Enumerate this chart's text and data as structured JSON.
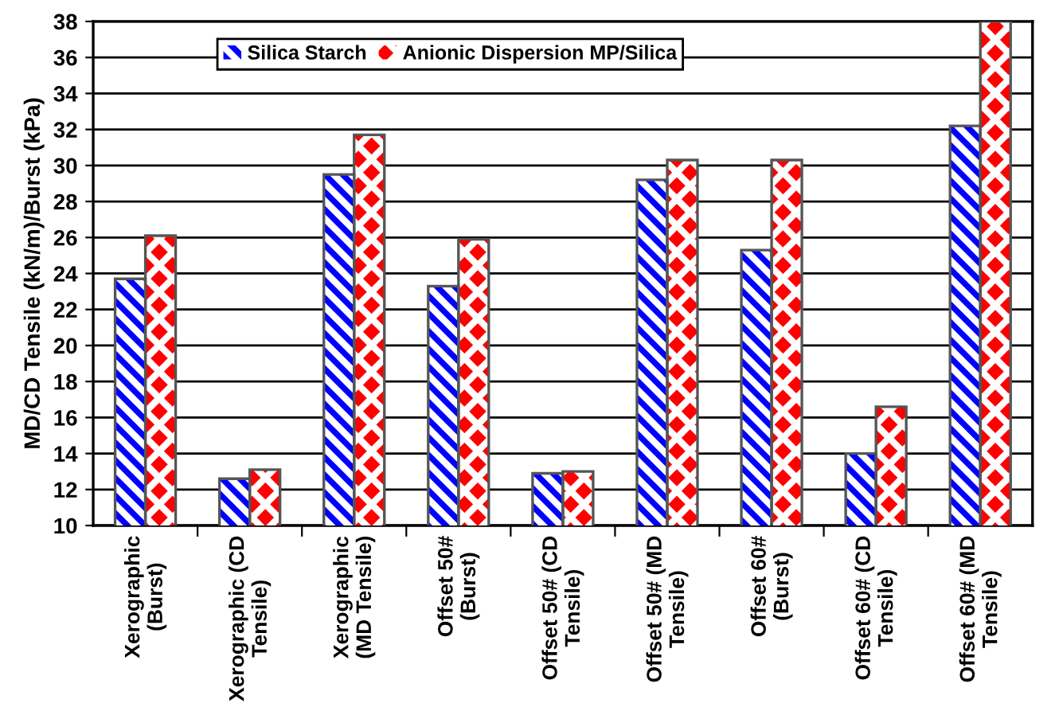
{
  "chart_data": {
    "type": "bar",
    "ylabel": "MD/CD Tensile (kN/m)/Burst (kPa)",
    "categories": [
      "Xerographic\n(Burst)",
      "Xerographic (CD\nTensile)",
      "Xerographic\n(MD Tensile)",
      "Offset 50#\n(Burst)",
      "Offset 50# (CD\nTensile)",
      "Offset 50# (MD\nTensile)",
      "Offset 60#\n(Burst)",
      "Offset 60# (CD\nTensile)",
      "Offset 60# (MD\nTensile)"
    ],
    "series": [
      {
        "name": "Silica Starch",
        "color": "#0000ff",
        "values": [
          23.7,
          12.6,
          29.5,
          23.3,
          12.9,
          29.2,
          25.3,
          14.0,
          32.2
        ]
      },
      {
        "name": "Anionic Dispersion MP/Silica",
        "color": "#ff0000",
        "values": [
          26.1,
          13.1,
          31.7,
          25.9,
          13.0,
          30.3,
          30.3,
          16.6,
          38.0
        ]
      }
    ],
    "ylim": [
      10,
      38
    ],
    "yticks": [
      10,
      12,
      14,
      16,
      18,
      20,
      22,
      24,
      26,
      28,
      30,
      32,
      34,
      36,
      38
    ],
    "grid": "y",
    "legend": "top"
  }
}
